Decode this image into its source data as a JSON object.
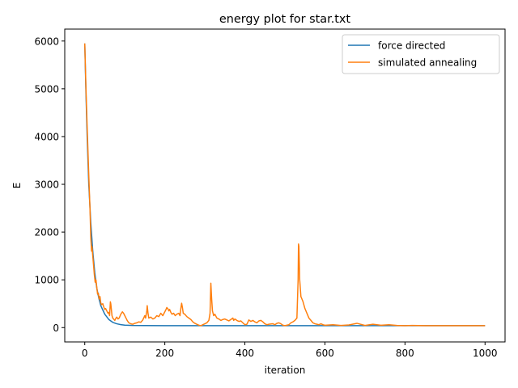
{
  "chart_data": {
    "type": "line",
    "title": "energy plot for star.txt",
    "xlabel": "iteration",
    "ylabel": "E",
    "xlim": [
      -50,
      1050
    ],
    "ylim": [
      -300,
      6250
    ],
    "xticks": [
      0,
      200,
      400,
      600,
      800,
      1000
    ],
    "yticks": [
      0,
      1000,
      2000,
      3000,
      4000,
      5000,
      6000
    ],
    "grid": false,
    "legend_position": "top-right",
    "series": [
      {
        "name": "force directed",
        "color": "#1f77b4",
        "points": [
          [
            0,
            5950
          ],
          [
            3,
            4900
          ],
          [
            6,
            4000
          ],
          [
            10,
            3000
          ],
          [
            15,
            2200
          ],
          [
            20,
            1600
          ],
          [
            25,
            1150
          ],
          [
            30,
            830
          ],
          [
            35,
            620
          ],
          [
            40,
            460
          ],
          [
            50,
            280
          ],
          [
            60,
            170
          ],
          [
            70,
            110
          ],
          [
            80,
            80
          ],
          [
            90,
            62
          ],
          [
            100,
            52
          ],
          [
            120,
            45
          ],
          [
            150,
            42
          ],
          [
            200,
            40
          ],
          [
            300,
            40
          ],
          [
            400,
            40
          ],
          [
            500,
            40
          ],
          [
            600,
            40
          ],
          [
            700,
            40
          ],
          [
            800,
            40
          ],
          [
            900,
            40
          ],
          [
            1000,
            40
          ]
        ]
      },
      {
        "name": "simulated annealing",
        "color": "#ff7f0e",
        "points": [
          [
            0,
            5950
          ],
          [
            3,
            5000
          ],
          [
            6,
            4200
          ],
          [
            10,
            3200
          ],
          [
            13,
            2500
          ],
          [
            15,
            1900
          ],
          [
            17,
            1600
          ],
          [
            18,
            1700
          ],
          [
            20,
            1500
          ],
          [
            22,
            1300
          ],
          [
            24,
            1100
          ],
          [
            26,
            950
          ],
          [
            28,
            1000
          ],
          [
            30,
            850
          ],
          [
            32,
            700
          ],
          [
            34,
            720
          ],
          [
            36,
            600
          ],
          [
            38,
            650
          ],
          [
            40,
            520
          ],
          [
            42,
            480
          ],
          [
            45,
            500
          ],
          [
            48,
            420
          ],
          [
            50,
            380
          ],
          [
            52,
            400
          ],
          [
            55,
            350
          ],
          [
            58,
            300
          ],
          [
            60,
            320
          ],
          [
            62,
            250
          ],
          [
            64,
            540
          ],
          [
            65,
            500
          ],
          [
            66,
            420
          ],
          [
            68,
            250
          ],
          [
            70,
            200
          ],
          [
            72,
            180
          ],
          [
            75,
            150
          ],
          [
            78,
            200
          ],
          [
            80,
            220
          ],
          [
            83,
            180
          ],
          [
            86,
            200
          ],
          [
            90,
            280
          ],
          [
            94,
            330
          ],
          [
            97,
            300
          ],
          [
            100,
            250
          ],
          [
            103,
            200
          ],
          [
            106,
            150
          ],
          [
            110,
            100
          ],
          [
            115,
            80
          ],
          [
            120,
            70
          ],
          [
            125,
            90
          ],
          [
            130,
            100
          ],
          [
            135,
            120
          ],
          [
            140,
            110
          ],
          [
            145,
            160
          ],
          [
            150,
            250
          ],
          [
            152,
            200
          ],
          [
            155,
            350
          ],
          [
            156,
            460
          ],
          [
            158,
            300
          ],
          [
            160,
            200
          ],
          [
            165,
            220
          ],
          [
            170,
            180
          ],
          [
            175,
            200
          ],
          [
            180,
            250
          ],
          [
            185,
            230
          ],
          [
            190,
            300
          ],
          [
            195,
            250
          ],
          [
            200,
            330
          ],
          [
            203,
            380
          ],
          [
            205,
            420
          ],
          [
            208,
            390
          ],
          [
            210,
            350
          ],
          [
            212,
            380
          ],
          [
            215,
            320
          ],
          [
            218,
            280
          ],
          [
            222,
            300
          ],
          [
            226,
            250
          ],
          [
            230,
            280
          ],
          [
            235,
            300
          ],
          [
            238,
            250
          ],
          [
            240,
            400
          ],
          [
            242,
            510
          ],
          [
            244,
            420
          ],
          [
            246,
            300
          ],
          [
            250,
            280
          ],
          [
            255,
            230
          ],
          [
            260,
            200
          ],
          [
            265,
            170
          ],
          [
            270,
            120
          ],
          [
            275,
            90
          ],
          [
            280,
            70
          ],
          [
            285,
            50
          ],
          [
            290,
            40
          ],
          [
            295,
            60
          ],
          [
            300,
            80
          ],
          [
            305,
            100
          ],
          [
            310,
            150
          ],
          [
            313,
            300
          ],
          [
            315,
            930
          ],
          [
            317,
            600
          ],
          [
            319,
            350
          ],
          [
            322,
            250
          ],
          [
            325,
            280
          ],
          [
            330,
            200
          ],
          [
            335,
            180
          ],
          [
            340,
            150
          ],
          [
            345,
            170
          ],
          [
            350,
            180
          ],
          [
            355,
            160
          ],
          [
            360,
            140
          ],
          [
            365,
            170
          ],
          [
            370,
            200
          ],
          [
            372,
            150
          ],
          [
            375,
            180
          ],
          [
            380,
            150
          ],
          [
            385,
            130
          ],
          [
            390,
            140
          ],
          [
            395,
            100
          ],
          [
            400,
            60
          ],
          [
            405,
            70
          ],
          [
            410,
            160
          ],
          [
            415,
            130
          ],
          [
            420,
            150
          ],
          [
            425,
            120
          ],
          [
            430,
            100
          ],
          [
            435,
            140
          ],
          [
            440,
            150
          ],
          [
            445,
            120
          ],
          [
            450,
            80
          ],
          [
            455,
            60
          ],
          [
            460,
            70
          ],
          [
            470,
            80
          ],
          [
            475,
            60
          ],
          [
            480,
            90
          ],
          [
            485,
            100
          ],
          [
            490,
            80
          ],
          [
            495,
            50
          ],
          [
            500,
            40
          ],
          [
            510,
            60
          ],
          [
            515,
            100
          ],
          [
            520,
            120
          ],
          [
            525,
            150
          ],
          [
            530,
            200
          ],
          [
            533,
            1000
          ],
          [
            534,
            1750
          ],
          [
            535,
            1700
          ],
          [
            537,
            1000
          ],
          [
            540,
            650
          ],
          [
            545,
            550
          ],
          [
            550,
            400
          ],
          [
            555,
            300
          ],
          [
            560,
            200
          ],
          [
            565,
            150
          ],
          [
            570,
            100
          ],
          [
            575,
            80
          ],
          [
            580,
            70
          ],
          [
            585,
            60
          ],
          [
            590,
            80
          ],
          [
            595,
            60
          ],
          [
            600,
            50
          ],
          [
            620,
            60
          ],
          [
            640,
            45
          ],
          [
            660,
            55
          ],
          [
            680,
            90
          ],
          [
            700,
            45
          ],
          [
            720,
            70
          ],
          [
            740,
            50
          ],
          [
            760,
            60
          ],
          [
            780,
            45
          ],
          [
            800,
            40
          ],
          [
            820,
            45
          ],
          [
            850,
            40
          ],
          [
            900,
            40
          ],
          [
            950,
            40
          ],
          [
            1000,
            40
          ]
        ]
      }
    ]
  }
}
